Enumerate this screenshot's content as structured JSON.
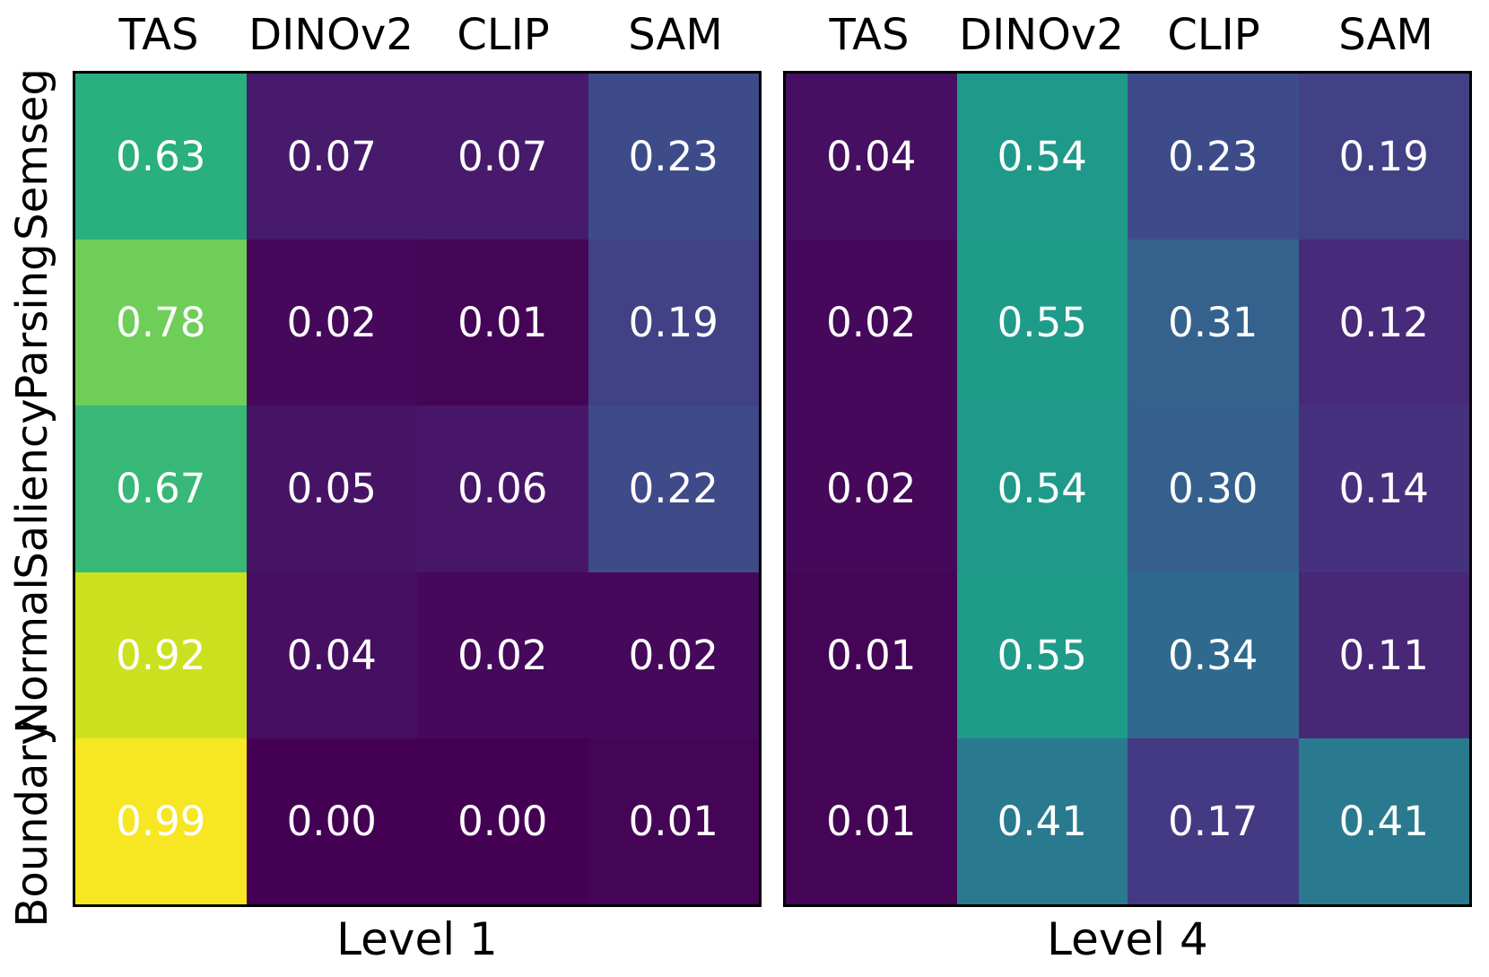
{
  "chart_data": [
    {
      "type": "heatmap",
      "xlabel": "Level 1",
      "columns": [
        "TAS",
        "DINOv2",
        "CLIP",
        "SAM"
      ],
      "rows": [
        "Semseg",
        "Parsing",
        "Saliency",
        "Normal",
        "Boundary"
      ],
      "values": [
        [
          0.63,
          0.07,
          0.07,
          0.23
        ],
        [
          0.78,
          0.02,
          0.01,
          0.19
        ],
        [
          0.67,
          0.05,
          0.06,
          0.22
        ],
        [
          0.92,
          0.04,
          0.02,
          0.02
        ],
        [
          0.99,
          0.0,
          0.0,
          0.01
        ]
      ],
      "vmin": 0,
      "vmax": 1,
      "colormap": "viridis",
      "annotation_decimals": 2,
      "annotation_color": "#ffffff",
      "show_row_labels": true,
      "grid": false,
      "legend": "none"
    },
    {
      "type": "heatmap",
      "xlabel": "Level 4",
      "columns": [
        "TAS",
        "DINOv2",
        "CLIP",
        "SAM"
      ],
      "rows": [
        "Semseg",
        "Parsing",
        "Saliency",
        "Normal",
        "Boundary"
      ],
      "values": [
        [
          0.04,
          0.54,
          0.23,
          0.19
        ],
        [
          0.02,
          0.55,
          0.31,
          0.12
        ],
        [
          0.02,
          0.54,
          0.3,
          0.14
        ],
        [
          0.01,
          0.55,
          0.34,
          0.11
        ],
        [
          0.01,
          0.41,
          0.17,
          0.41
        ]
      ],
      "vmin": 0,
      "vmax": 1,
      "colormap": "viridis",
      "annotation_decimals": 2,
      "annotation_color": "#ffffff",
      "show_row_labels": false,
      "grid": false,
      "legend": "none"
    }
  ],
  "style": {
    "background": "#ffffff",
    "text_color": "#000000",
    "border_color": "#000000",
    "viridis_stops": [
      [
        0.0,
        "#440154"
      ],
      [
        0.05,
        "#471365"
      ],
      [
        0.1,
        "#482475"
      ],
      [
        0.15,
        "#463480"
      ],
      [
        0.2,
        "#414487"
      ],
      [
        0.25,
        "#3b528b"
      ],
      [
        0.3,
        "#355f8d"
      ],
      [
        0.35,
        "#2f6c8e"
      ],
      [
        0.4,
        "#2a788e"
      ],
      [
        0.45,
        "#25848e"
      ],
      [
        0.5,
        "#21918c"
      ],
      [
        0.55,
        "#1e9c89"
      ],
      [
        0.6,
        "#22a884"
      ],
      [
        0.65,
        "#2fb47c"
      ],
      [
        0.7,
        "#44bf70"
      ],
      [
        0.75,
        "#5ec962"
      ],
      [
        0.8,
        "#7ad151"
      ],
      [
        0.85,
        "#9bd93c"
      ],
      [
        0.9,
        "#bddf26"
      ],
      [
        0.95,
        "#dfe318"
      ],
      [
        1.0,
        "#fde725"
      ]
    ]
  }
}
